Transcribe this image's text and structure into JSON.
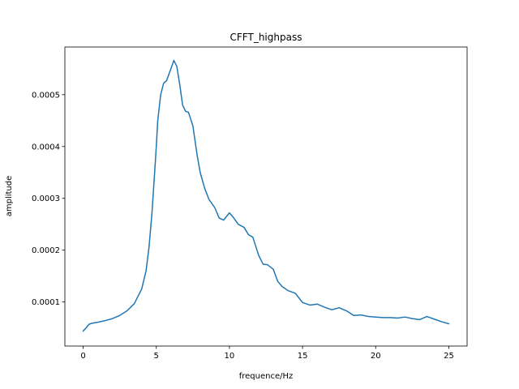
{
  "chart_data": {
    "type": "line",
    "title": "CFFT_highpass",
    "xlabel": "frequence/Hz",
    "ylabel": "amplitude",
    "xlim": [
      -1.25,
      26.25
    ],
    "ylim": [
      1.5e-05,
      0.000592
    ],
    "xticks": [
      0,
      5,
      10,
      15,
      20,
      25
    ],
    "xtick_labels": [
      "0",
      "5",
      "10",
      "15",
      "20",
      "25"
    ],
    "yticks": [
      0.0001,
      0.0002,
      0.0003,
      0.0004,
      0.0005
    ],
    "ytick_labels": [
      "0.0001",
      "0.0002",
      "0.0003",
      "0.0004",
      "0.0005"
    ],
    "grid": false,
    "series": [
      {
        "color": "#1f77b4",
        "x": [
          0,
          0.2,
          0.4,
          0.6,
          1.0,
          1.5,
          2.0,
          2.5,
          3.0,
          3.5,
          4.0,
          4.3,
          4.5,
          4.7,
          4.9,
          5.0,
          5.1,
          5.3,
          5.5,
          5.7,
          6.0,
          6.2,
          6.4,
          6.6,
          6.8,
          7.0,
          7.2,
          7.5,
          7.8,
          8.0,
          8.3,
          8.6,
          9.0,
          9.3,
          9.6,
          10.0,
          10.3,
          10.6,
          11.0,
          11.3,
          11.6,
          12.0,
          12.3,
          12.6,
          13.0,
          13.3,
          13.6,
          14.0,
          14.5,
          15.0,
          15.5,
          16.0,
          16.5,
          17.0,
          17.5,
          18.0,
          18.5,
          19.0,
          19.5,
          20.0,
          20.5,
          21.0,
          21.5,
          22.0,
          22.5,
          23.0,
          23.5,
          24.0,
          24.5,
          25.0
        ],
        "y": [
          4.4e-05,
          5e-05,
          5.7e-05,
          5.9e-05,
          6.1e-05,
          6.4e-05,
          6.8e-05,
          7.4e-05,
          8.3e-05,
          9.7e-05,
          0.000125,
          0.00016,
          0.000205,
          0.00027,
          0.000355,
          0.0004,
          0.00045,
          0.0005,
          0.000522,
          0.000527,
          0.00055,
          0.000566,
          0.000555,
          0.00052,
          0.00048,
          0.000468,
          0.000466,
          0.00044,
          0.000382,
          0.00035,
          0.00032,
          0.000298,
          0.000282,
          0.000262,
          0.000258,
          0.000272,
          0.000262,
          0.00025,
          0.000244,
          0.00023,
          0.000225,
          0.00019,
          0.000173,
          0.000172,
          0.000163,
          0.00014,
          0.00013,
          0.000122,
          0.000117,
          9.9e-05,
          9.4e-05,
          9.6e-05,
          9e-05,
          8.5e-05,
          8.9e-05,
          8.3e-05,
          7.4e-05,
          7.5e-05,
          7.2e-05,
          7.1e-05,
          7e-05,
          7e-05,
          6.9e-05,
          7.1e-05,
          6.8e-05,
          6.6e-05,
          7.2e-05,
          6.7e-05,
          6.2e-05,
          5.8e-05
        ]
      }
    ]
  }
}
